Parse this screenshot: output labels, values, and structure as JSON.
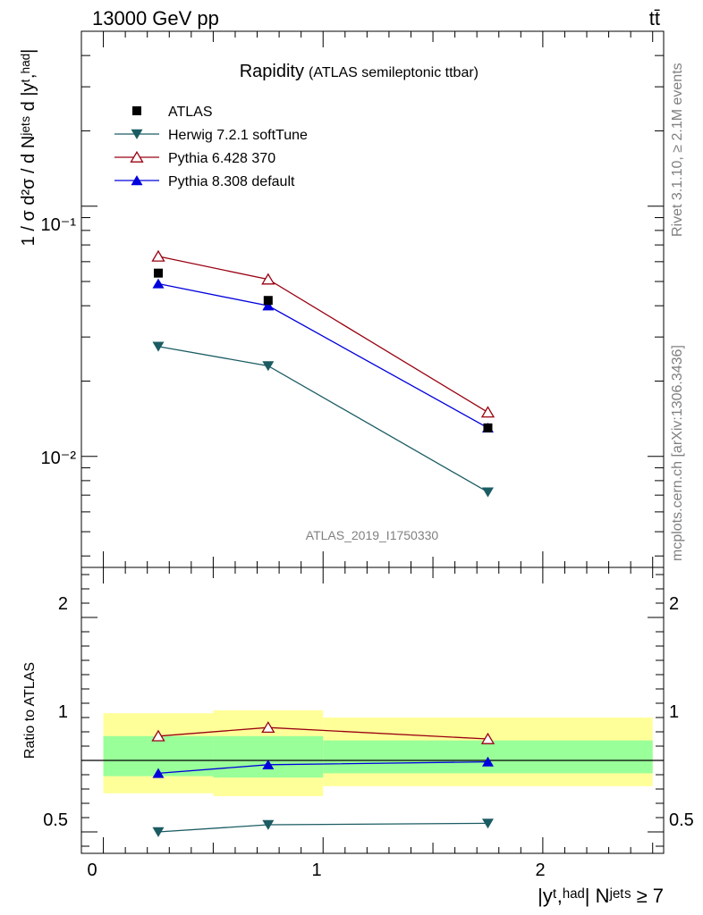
{
  "header": {
    "energy": "13000 GeV pp",
    "process": "tt̄"
  },
  "side": {
    "rivet": "Rivet 3.1.10, ≥ 2.1M events",
    "source": "mcplots.cern.ch [arXiv:1306.3436]"
  },
  "chart_data": [
    {
      "type": "scatter",
      "title": "Rapidity",
      "subtitle": "(ATLAS semileptonic ttbar)",
      "watermark": "ATLAS_2019_I1750330",
      "ylabel": "1 / σ d²σ / d Nʲᵉᵗˢ d |yᵗ,ʰᵃᵈ|",
      "yscale": "log",
      "ylim": [
        0.0036,
        0.5
      ],
      "xlim": [
        -0.1,
        2.55
      ],
      "legend_position": "top-left",
      "y_tick_labels": [
        "10⁻¹",
        "10⁻²"
      ],
      "x": [
        0.25,
        0.75,
        1.75
      ],
      "series": [
        {
          "name": "ATLAS",
          "color": "#000000",
          "marker": "square",
          "values": [
            0.054,
            0.042,
            0.013
          ]
        },
        {
          "name": "Herwig 7.2.1 softTune",
          "color": "#1b5c63",
          "marker": "triangle-down",
          "values": [
            0.0275,
            0.023,
            0.0072
          ]
        },
        {
          "name": "Pythia 6.428 370",
          "color": "#990011",
          "marker": "triangle-up-open",
          "values": [
            0.063,
            0.051,
            0.015
          ]
        },
        {
          "name": "Pythia 8.308 default",
          "color": "#0000dd",
          "marker": "triangle-up",
          "values": [
            0.049,
            0.04,
            0.013
          ]
        }
      ]
    },
    {
      "type": "scatter",
      "ylabel": "Ratio to ATLAS",
      "xlabel": "|yᵗ,ʰᵃᵈ| Nʲᵉᵗˢ ≥ 7",
      "ylim": [
        0.35,
        2.35
      ],
      "xlim": [
        -0.1,
        2.55
      ],
      "reference_line": 1,
      "y_tick_labels": [
        "0.5",
        "1",
        "2"
      ],
      "x_tick_labels": [
        "0",
        "1",
        "2"
      ],
      "bins": [
        [
          0,
          0.5
        ],
        [
          0.5,
          1.0
        ],
        [
          1.0,
          2.5
        ]
      ],
      "bands": [
        {
          "name": "total",
          "color": "#ffff99",
          "low": [
            0.77,
            0.75,
            0.82
          ],
          "high": [
            1.33,
            1.35,
            1.3
          ]
        },
        {
          "name": "stat",
          "color": "#99ff99",
          "low": [
            0.89,
            0.88,
            0.91
          ],
          "high": [
            1.17,
            1.17,
            1.14
          ]
        }
      ],
      "x": [
        0.25,
        0.75,
        1.75
      ],
      "series": [
        {
          "name": "Herwig 7.2.1 softTune",
          "color": "#1b5c63",
          "marker": "triangle-down",
          "values": [
            0.5,
            0.55,
            0.56
          ]
        },
        {
          "name": "Pythia 6.428 370",
          "color": "#990011",
          "marker": "triangle-up-open",
          "values": [
            1.17,
            1.23,
            1.15
          ]
        },
        {
          "name": "Pythia 8.308 default",
          "color": "#0000dd",
          "marker": "triangle-up",
          "values": [
            0.91,
            0.97,
            0.99
          ]
        }
      ]
    }
  ]
}
